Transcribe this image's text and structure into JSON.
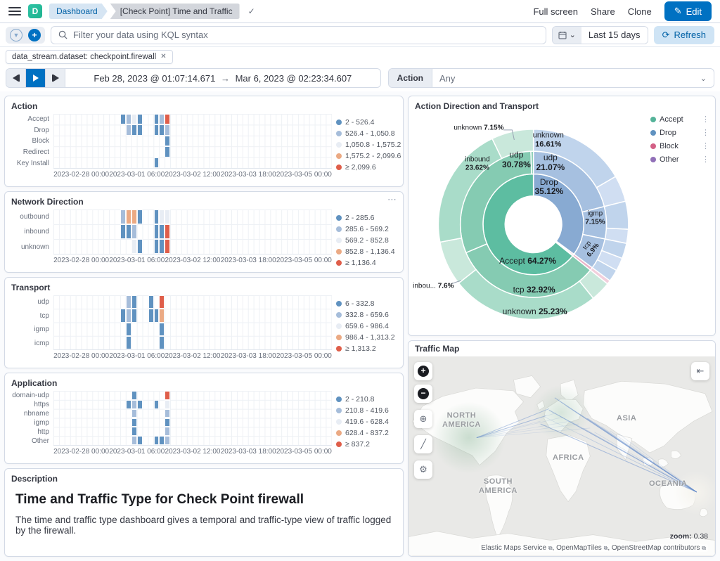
{
  "nav": {
    "logo_letter": "D",
    "breadcrumb": [
      "Dashboard",
      "[Check Point] Time and Traffic"
    ],
    "saved_check_icon": "✓",
    "links": {
      "full_screen": "Full screen",
      "share": "Share",
      "clone": "Clone"
    },
    "edit_button": {
      "label": "Edit",
      "pencil_icon": "✎"
    }
  },
  "query_bar": {
    "placeholder": "Filter your data using KQL syntax",
    "value": "",
    "time_range_button": "Last 15 days",
    "refresh_button": {
      "label": "Refresh",
      "icon": "⟳"
    }
  },
  "filter_pill": {
    "text": "data_stream.dataset: checkpoint.firewall",
    "close_icon": "✕"
  },
  "time_bar": {
    "range_start": "Feb 28, 2023 @ 01:07:14.671",
    "arrow": "→",
    "range_end": "Mar 6, 2023 @ 02:23:34.607"
  },
  "action_control": {
    "label": "Action",
    "value": "Any",
    "chevron_icon": "⌄"
  },
  "heatmap_palette": [
    "#6092c0",
    "#a6bdda",
    "#e8edf4",
    "#ebaa84",
    "#df5e4a"
  ],
  "chart_data": [
    {
      "type": "heatmap",
      "title": "Action",
      "rows": [
        "Accept",
        "Drop",
        "Block",
        "Redirect",
        "Key Install"
      ],
      "x_ticks": [
        "2023-02-28 00:00",
        "2023-03-01 06:00",
        "2023-03-02 12:00",
        "2023-03-03 18:00",
        "2023-03-05 00:00"
      ],
      "legend": [
        "2 - 526.4",
        "526.4 - 1,050.8",
        "1,050.8 - 1,575.2",
        "1,575.2 - 2,099.6",
        "≥ 2,099.6"
      ],
      "cells": [
        [
          0,
          12,
          1
        ],
        [
          0,
          13,
          2
        ],
        [
          0,
          14,
          3
        ],
        [
          0,
          15,
          1
        ],
        [
          0,
          18,
          1
        ],
        [
          0,
          19,
          2
        ],
        [
          0,
          20,
          5
        ],
        [
          1,
          13,
          2
        ],
        [
          1,
          14,
          1
        ],
        [
          1,
          15,
          1
        ],
        [
          1,
          18,
          1
        ],
        [
          1,
          19,
          1
        ],
        [
          1,
          20,
          2
        ],
        [
          2,
          20,
          1
        ],
        [
          3,
          20,
          1
        ],
        [
          4,
          18,
          1
        ]
      ]
    },
    {
      "type": "heatmap",
      "title": "Network Direction",
      "rows": [
        "outbound",
        "inbound",
        "unknown"
      ],
      "x_ticks": [
        "2023-02-28 00:00",
        "2023-03-01 06:00",
        "2023-03-02 12:00",
        "2023-03-03 18:00",
        "2023-03-05 00:00"
      ],
      "legend": [
        "2 - 285.6",
        "285.6 - 569.2",
        "569.2 - 852.8",
        "852.8 - 1,136.4",
        "≥ 1,136.4"
      ],
      "cells": [
        [
          0,
          12,
          2
        ],
        [
          0,
          13,
          4
        ],
        [
          0,
          14,
          4
        ],
        [
          0,
          15,
          1
        ],
        [
          0,
          18,
          1
        ],
        [
          0,
          19,
          3
        ],
        [
          0,
          20,
          3
        ],
        [
          1,
          12,
          1
        ],
        [
          1,
          13,
          1
        ],
        [
          1,
          14,
          2
        ],
        [
          1,
          18,
          1
        ],
        [
          1,
          19,
          1
        ],
        [
          1,
          20,
          5
        ],
        [
          2,
          14,
          3
        ],
        [
          2,
          15,
          1
        ],
        [
          2,
          18,
          1
        ],
        [
          2,
          19,
          1
        ],
        [
          2,
          20,
          5
        ]
      ]
    },
    {
      "type": "heatmap",
      "title": "Transport",
      "rows": [
        "udp",
        "tcp",
        "igmp",
        "icmp"
      ],
      "x_ticks": [
        "2023-02-28 00:00",
        "2023-03-01 06:00",
        "2023-03-02 12:00",
        "2023-03-03 18:00",
        "2023-03-05 00:00"
      ],
      "legend": [
        "6 - 332.8",
        "332.8 - 659.6",
        "659.6 - 986.4",
        "986.4 - 1,313.2",
        "≥ 1,313.2"
      ],
      "cells": [
        [
          0,
          13,
          2
        ],
        [
          0,
          14,
          1
        ],
        [
          0,
          17,
          1
        ],
        [
          0,
          19,
          5
        ],
        [
          1,
          12,
          1
        ],
        [
          1,
          13,
          2
        ],
        [
          1,
          14,
          1
        ],
        [
          1,
          17,
          1
        ],
        [
          1,
          18,
          1
        ],
        [
          1,
          19,
          4
        ],
        [
          2,
          13,
          1
        ],
        [
          2,
          19,
          1
        ],
        [
          3,
          13,
          1
        ],
        [
          3,
          19,
          1
        ]
      ]
    },
    {
      "type": "heatmap",
      "title": "Application",
      "rows": [
        "domain-udp",
        "https",
        "nbname",
        "igmp",
        "http",
        "Other"
      ],
      "x_ticks": [
        "2023-02-28 00:00",
        "2023-03-01 06:00",
        "2023-03-02 12:00",
        "2023-03-03 18:00",
        "2023-03-05 00:00"
      ],
      "legend": [
        "2 - 210.8",
        "210.8 - 419.6",
        "419.6 - 628.4",
        "628.4 - 837.2",
        "≥ 837.2"
      ],
      "cells": [
        [
          0,
          14,
          1
        ],
        [
          0,
          20,
          5
        ],
        [
          1,
          13,
          1
        ],
        [
          1,
          14,
          2
        ],
        [
          1,
          15,
          1
        ],
        [
          1,
          18,
          1
        ],
        [
          1,
          20,
          3
        ],
        [
          2,
          14,
          2
        ],
        [
          2,
          20,
          2
        ],
        [
          3,
          14,
          1
        ],
        [
          3,
          20,
          1
        ],
        [
          4,
          14,
          1
        ],
        [
          4,
          20,
          2
        ],
        [
          5,
          14,
          2
        ],
        [
          5,
          15,
          1
        ],
        [
          5,
          18,
          1
        ],
        [
          5,
          19,
          1
        ],
        [
          5,
          20,
          2
        ]
      ]
    },
    {
      "type": "pie",
      "title": "Action Direction and Transport",
      "legend": [
        {
          "label": "Accept",
          "color": "#54b399"
        },
        {
          "label": "Drop",
          "color": "#6092c0"
        },
        {
          "label": "Block",
          "color": "#d36086"
        },
        {
          "label": "Other",
          "color": "#9170b8"
        }
      ],
      "hierarchy_note": "rings: Action (inner), Transport (middle), Network Direction (outer)",
      "slices": {
        "action": [
          {
            "name": "Accept",
            "pct": 64.27
          },
          {
            "name": "Drop",
            "pct": 35.12
          },
          {
            "name": "Block",
            "pct": 0.4
          },
          {
            "name": "Other",
            "pct": 0.21
          }
        ],
        "transport": [
          {
            "name": "udp (Accept)",
            "pct": 30.78
          },
          {
            "name": "tcp (Accept)",
            "pct": 32.92
          },
          {
            "name": "udp (Drop)",
            "pct": 21.07
          },
          {
            "name": "igmp (Drop)",
            "pct": 7.15
          },
          {
            "name": "tcp (Drop)",
            "pct": 6.9
          }
        ],
        "direction": [
          {
            "name": "unknown (Drop/udp)",
            "pct": 16.61
          },
          {
            "name": "unknown (Accept/tcp)",
            "pct": 25.23
          },
          {
            "name": "inbound (Accept/udp)",
            "pct": 23.62
          },
          {
            "name": "unknown (Accept/udp)",
            "pct": 7.15
          },
          {
            "name": "inbound (Accept/tcp)",
            "pct": 7.6
          }
        ]
      },
      "ring_radii": [
        [
          40,
          71
        ],
        [
          71,
          103
        ],
        [
          103,
          134
        ]
      ],
      "center": [
        176,
        176
      ],
      "segments": [
        {
          "r": 0,
          "a0": 0,
          "a1": 126.4,
          "c": "#88aad2"
        },
        {
          "r": 0,
          "a0": 126.4,
          "a1": 127.9,
          "c": "#d36086"
        },
        {
          "r": 0,
          "a0": 127.9,
          "a1": 128.8,
          "c": "#9878c0"
        },
        {
          "r": 0,
          "a0": 128.8,
          "a1": 360,
          "c": "#5dbda1"
        },
        {
          "r": 1,
          "a0": 0,
          "a1": 75.9,
          "c": "#a6c0e0"
        },
        {
          "r": 1,
          "a0": 75.9,
          "a1": 101.6,
          "c": "#a6c0e0"
        },
        {
          "r": 1,
          "a0": 101.6,
          "a1": 126.4,
          "c": "#a6c0e0"
        },
        {
          "r": 1,
          "a0": 126.4,
          "a1": 128.8,
          "c": "#eab4c8"
        },
        {
          "r": 1,
          "a0": 128.8,
          "a1": 247.2,
          "c": "#85cbb2"
        },
        {
          "r": 1,
          "a0": 247.2,
          "a1": 358,
          "c": "#85cbb2"
        },
        {
          "r": 1,
          "a0": 358,
          "a1": 360,
          "c": "#85cbb2"
        },
        {
          "r": 2,
          "a0": 0,
          "a1": 59.8,
          "c": "#c0d4ec"
        },
        {
          "r": 2,
          "a0": 59.8,
          "a1": 75.9,
          "c": "#d0def2"
        },
        {
          "r": 2,
          "a0": 75.9,
          "a1": 93,
          "c": "#c0d4ec"
        },
        {
          "r": 2,
          "a0": 93,
          "a1": 101.6,
          "c": "#d0def2"
        },
        {
          "r": 2,
          "a0": 101.6,
          "a1": 111,
          "c": "#c0d4ec"
        },
        {
          "r": 2,
          "a0": 111,
          "a1": 119,
          "c": "#d0def2"
        },
        {
          "r": 2,
          "a0": 119,
          "a1": 126.4,
          "c": "#c0d4ec"
        },
        {
          "r": 2,
          "a0": 126.4,
          "a1": 128.8,
          "c": "#f2cfdc"
        },
        {
          "r": 2,
          "a0": 128.8,
          "a1": 141,
          "c": "#c9e8db"
        },
        {
          "r": 2,
          "a0": 141,
          "a1": 231.8,
          "c": "#a9dcc9"
        },
        {
          "r": 2,
          "a0": 231.8,
          "a1": 259.2,
          "c": "#c9e8db"
        },
        {
          "r": 2,
          "a0": 259.2,
          "a1": 334.3,
          "c": "#a9dcc9"
        },
        {
          "r": 2,
          "a0": 334.3,
          "a1": 360,
          "c": "#c9e8db"
        }
      ],
      "labels": [
        {
          "x": 197,
          "y": 60,
          "size": 11,
          "stacked": true,
          "parts": [
            [
              "unknown",
              false
            ],
            [
              "16.61%",
              true
            ]
          ]
        },
        {
          "x": 152,
          "y": 88,
          "size": 12,
          "stacked": true,
          "parts": [
            [
              "udp",
              false
            ],
            [
              "30.78%",
              true
            ]
          ]
        },
        {
          "x": 200,
          "y": 92,
          "size": 12,
          "stacked": true,
          "parts": [
            [
              "udp",
              false
            ],
            [
              "21.07%",
              true
            ]
          ]
        },
        {
          "x": 198,
          "y": 125,
          "size": 12,
          "stacked": true,
          "parts": [
            [
              "Drop",
              false
            ],
            [
              "35.12%",
              true
            ]
          ]
        },
        {
          "x": 263,
          "y": 167,
          "size": 10,
          "stacked": true,
          "parts": [
            [
              "igmp",
              false
            ],
            [
              "7.15%",
              true
            ]
          ]
        },
        {
          "x": 257,
          "y": 208,
          "size": 9.5,
          "rot": -52,
          "stacked": true,
          "parts": [
            [
              "tcp",
              false
            ],
            [
              "6.9%",
              true
            ]
          ]
        },
        {
          "x": 168,
          "y": 227,
          "size": 12,
          "stacked": false,
          "parts": [
            [
              "Accept ",
              false
            ],
            [
              "64.27%",
              true
            ]
          ]
        },
        {
          "x": 177,
          "y": 266,
          "size": 12,
          "stacked": false,
          "parts": [
            [
              "tcp ",
              false
            ],
            [
              "32.92%",
              true
            ]
          ]
        },
        {
          "x": 178,
          "y": 296,
          "size": 12,
          "stacked": false,
          "parts": [
            [
              "unknown ",
              false
            ],
            [
              "25.23%",
              true
            ]
          ]
        },
        {
          "x": 97,
          "y": 93,
          "size": 10,
          "stacked": true,
          "parts": [
            [
              "inbound",
              false
            ],
            [
              "23.62%",
              true
            ]
          ]
        },
        {
          "x": 99,
          "y": 43,
          "size": 10,
          "stacked": false,
          "parts": [
            [
              "unknown ",
              false
            ],
            [
              "7.15%",
              true
            ]
          ],
          "callout": [
            [
              134,
              43
            ],
            [
              146,
              43
            ],
            [
              149,
              57
            ]
          ]
        },
        {
          "x": 35,
          "y": 260,
          "size": 10,
          "stacked": false,
          "parts": [
            [
              "inbou... ",
              false
            ],
            [
              "7.6%",
              true
            ]
          ],
          "callout": [
            [
              60,
              260
            ],
            [
              74,
              255
            ]
          ]
        }
      ]
    }
  ],
  "description": {
    "title": "Description",
    "heading": "Time and Traffic Type for Check Point firewall",
    "body": "The time and traffic type dashboard gives a temporal and traffic-type view of traffic logged by the firewall."
  },
  "traffic_map": {
    "title": "Traffic Map",
    "labels": {
      "north_america": [
        "NORTH",
        "AMERICA"
      ],
      "south_america": [
        "SOUTH",
        "AMERICA"
      ],
      "africa": "AFRICA",
      "asia": "ASIA",
      "oceania": "OCEANIA"
    },
    "zoom_label": "zoom:",
    "zoom_value": "0.38",
    "attribution": [
      "Elastic Maps Service",
      "OpenMapTiles",
      "OpenStreetMap contributors"
    ],
    "external_link_icon": "⧉",
    "controls": {
      "zoom_in": "+",
      "zoom_out": "−",
      "set_view": "⊕",
      "measure": "╱",
      "tools": "⚙",
      "legend_toggle": "⇤"
    }
  }
}
